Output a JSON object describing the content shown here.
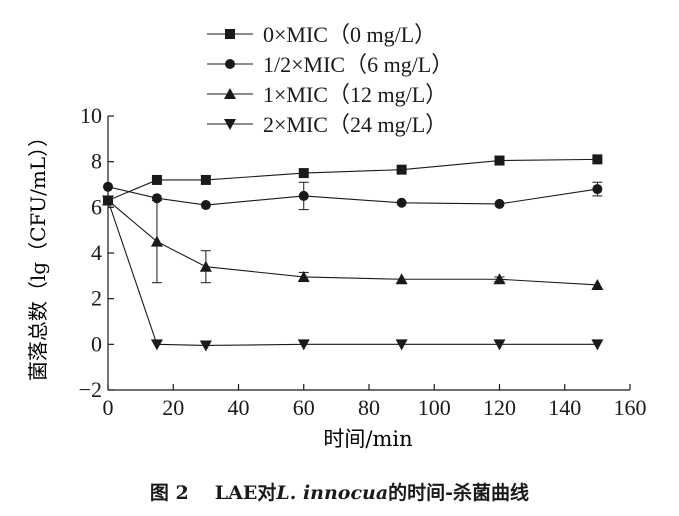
{
  "chart_data": {
    "type": "line",
    "xlabel": "时间/min",
    "ylabel": "菌落总数（lg（CFU/mL））",
    "xlim": [
      0,
      160
    ],
    "ylim": [
      -2,
      10
    ],
    "xticks": [
      "0",
      "20",
      "40",
      "60",
      "80",
      "100",
      "120",
      "140",
      "160"
    ],
    "yticks": [
      "−2",
      "0",
      "2",
      "4",
      "6",
      "8",
      "10"
    ],
    "legend_position": "top-center",
    "x": [
      0,
      15,
      30,
      60,
      90,
      120,
      150
    ],
    "series": [
      {
        "name": "0×MIC（0 mg/L）",
        "marker": "square",
        "values": [
          6.3,
          7.2,
          7.2,
          7.5,
          7.65,
          8.05,
          8.1
        ],
        "errors": [
          0,
          0,
          0,
          0,
          0,
          0,
          0
        ]
      },
      {
        "name": "1/2×MIC（6 mg/L）",
        "marker": "circle",
        "values": [
          6.9,
          6.4,
          6.1,
          6.5,
          6.2,
          6.15,
          6.8
        ],
        "errors": [
          0,
          0,
          0,
          0.6,
          0,
          0,
          0.3
        ]
      },
      {
        "name": "1×MIC（12 mg/L）",
        "marker": "triangle-up",
        "values": [
          6.3,
          4.5,
          3.4,
          2.95,
          2.85,
          2.85,
          2.6
        ],
        "errors": [
          0,
          1.8,
          0.7,
          0.2,
          0,
          0.1,
          0
        ]
      },
      {
        "name": "2×MIC（24 mg/L）",
        "marker": "triangle-down",
        "values": [
          6.3,
          0.0,
          -0.05,
          0.0,
          0.0,
          0.0,
          0.0
        ],
        "errors": [
          0,
          0,
          0,
          0,
          0,
          0,
          0
        ]
      }
    ]
  },
  "caption": {
    "figure_label": "图 2",
    "text_before": "LAE对",
    "species": "L. innocua",
    "text_after": "的时间-杀菌曲线"
  }
}
